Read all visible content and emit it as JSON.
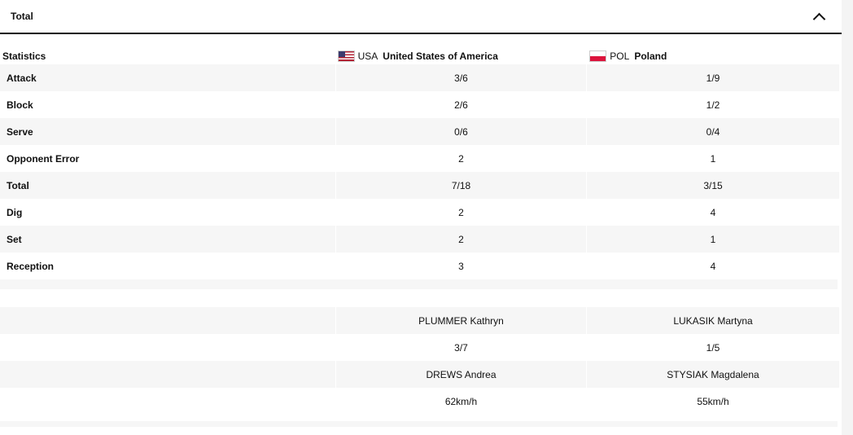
{
  "section": {
    "title": "Total"
  },
  "header": {
    "label": "Statistics",
    "team1": {
      "code": "USA",
      "name": "United States of America",
      "flag": "us-flag"
    },
    "team2": {
      "code": "POL",
      "name": "Poland",
      "flag": "pl-flag"
    }
  },
  "stats": [
    {
      "label": "Attack",
      "team1": "3/6",
      "team2": "1/9"
    },
    {
      "label": "Block",
      "team1": "2/6",
      "team2": "1/2"
    },
    {
      "label": "Serve",
      "team1": "0/6",
      "team2": "0/4"
    },
    {
      "label": "Opponent Error",
      "team1": "2",
      "team2": "1"
    },
    {
      "label": "Total",
      "team1": "7/18",
      "team2": "3/15"
    },
    {
      "label": "Dig",
      "team1": "2",
      "team2": "4"
    },
    {
      "label": "Set",
      "team1": "2",
      "team2": "1"
    },
    {
      "label": "Reception",
      "team1": "3",
      "team2": "4"
    }
  ],
  "players": [
    {
      "label": "",
      "team1": "PLUMMER Kathryn",
      "team2": "LUKASIK Martyna"
    },
    {
      "label": "",
      "team1": "3/7",
      "team2": "1/5"
    },
    {
      "label": "",
      "team1": "DREWS Andrea",
      "team2": "STYSIAK Magdalena"
    },
    {
      "label": "",
      "team1": "62km/h",
      "team2": "55km/h"
    }
  ],
  "colors": {
    "stripe": "#f6f6f6",
    "text": "#111111"
  }
}
